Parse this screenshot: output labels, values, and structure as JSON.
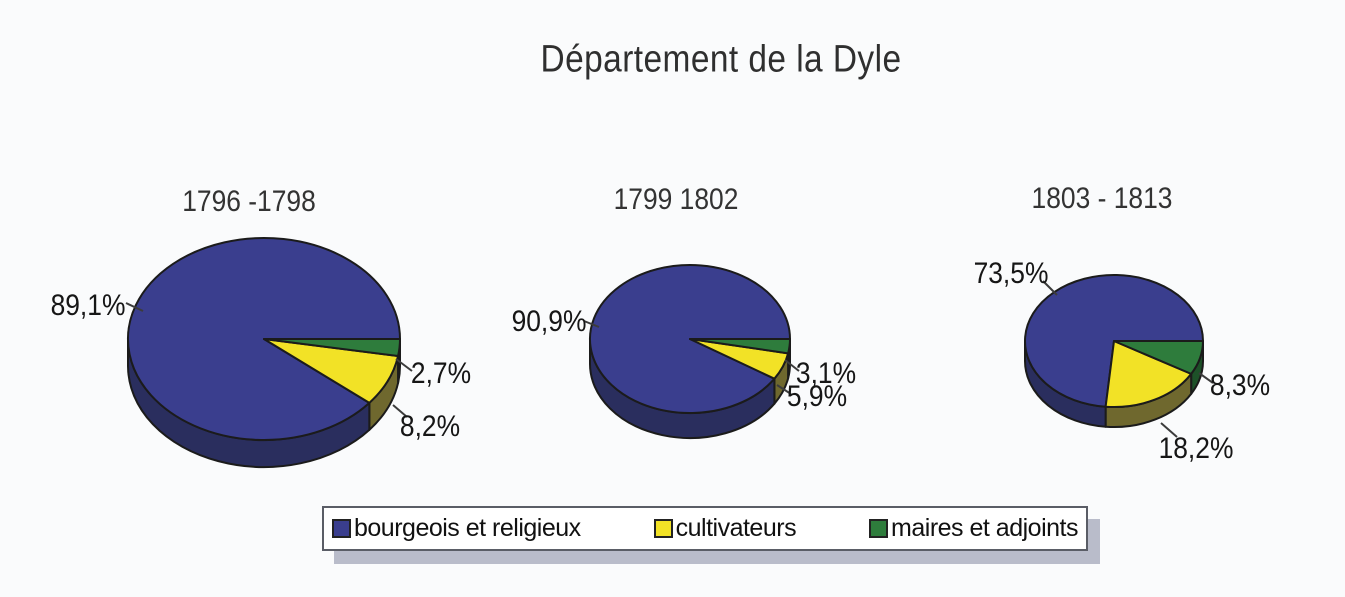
{
  "title": "Département de la Dyle",
  "colors": {
    "bourgeois_et_religieux": "#3a3e8e",
    "cultivateurs": "#f2e226",
    "maires_et_adjoints": "#2e7c3c",
    "side_bourgeois": "#2a2e5e",
    "side_cultivateurs": "#6f682e",
    "side_maires": "#1d5128",
    "outline": "#1b1b1b",
    "background": "#fafbfc",
    "legend_shadow": "#b9bcca"
  },
  "legend": {
    "items": [
      {
        "label": "bourgeois et religieux",
        "color": "#3a3e8e"
      },
      {
        "label": "cultivateurs",
        "color": "#f2e226"
      },
      {
        "label": "maires et adjoints",
        "color": "#2e7c3c"
      }
    ]
  },
  "chart_data": [
    {
      "type": "pie",
      "title": "1796 -1798",
      "labels": [
        "bourgeois et religieux",
        "cultivateurs",
        "maires et adjoints"
      ],
      "values": [
        89.1,
        8.2,
        2.7
      ],
      "display_values": [
        "89,1%",
        "8,2%",
        "2,7%"
      ],
      "legend_position": "bottom"
    },
    {
      "type": "pie",
      "title": "1799 1802",
      "labels": [
        "bourgeois et religieux",
        "cultivateurs",
        "maires et adjoints"
      ],
      "values": [
        90.9,
        5.9,
        3.1
      ],
      "display_values": [
        "90,9%",
        "5,9%",
        "3,1%"
      ],
      "legend_position": "bottom"
    },
    {
      "type": "pie",
      "title": "1803 - 1813",
      "labels": [
        "bourgeois et religieux",
        "cultivateurs",
        "maires et adjoints"
      ],
      "values": [
        73.5,
        18.2,
        8.3
      ],
      "display_values": [
        "73,5%",
        "18,2%",
        "8,3%"
      ],
      "legend_position": "bottom"
    }
  ]
}
